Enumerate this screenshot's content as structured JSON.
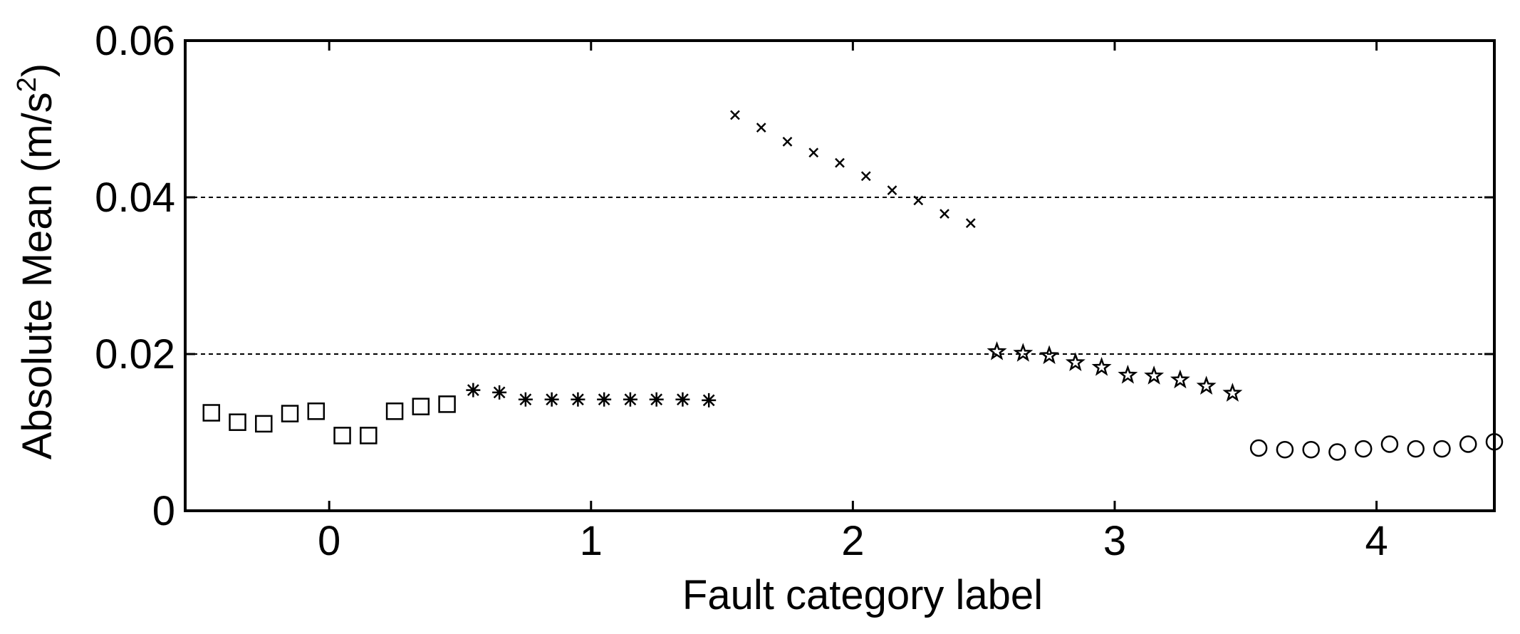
{
  "chart_data": {
    "type": "scatter",
    "title": "",
    "xlabel": "Fault category label",
    "ylabel_main": "Absolute Mean (m/s",
    "ylabel_sup": "2",
    "ylabel_tail": ")",
    "xlim": [
      -0.55,
      4.45
    ],
    "ylim": [
      0,
      0.06
    ],
    "xticks": [
      0,
      1,
      2,
      3,
      4
    ],
    "xtick_labels": [
      "0",
      "1",
      "2",
      "3",
      "4"
    ],
    "yticks": [
      0,
      0.02,
      0.04,
      0.06
    ],
    "ytick_labels": [
      "0",
      "0.02",
      "0.04",
      "0.06"
    ],
    "grid": {
      "y_dashed_at": [
        0.02,
        0.04
      ]
    },
    "series": [
      {
        "marker": "square",
        "x": [
          -0.45,
          -0.35,
          -0.25,
          -0.15,
          -0.05,
          0.05,
          0.15,
          0.25,
          0.35,
          0.45
        ],
        "y": [
          0.0125,
          0.0113,
          0.0111,
          0.0124,
          0.0127,
          0.0096,
          0.0096,
          0.0127,
          0.0133,
          0.0136
        ]
      },
      {
        "marker": "asterisk",
        "x": [
          0.55,
          0.65,
          0.75,
          0.85,
          0.95,
          1.05,
          1.15,
          1.25,
          1.35,
          1.45
        ],
        "y": [
          0.0154,
          0.0151,
          0.0142,
          0.0142,
          0.0142,
          0.0142,
          0.0142,
          0.0142,
          0.0142,
          0.0141
        ]
      },
      {
        "marker": "x",
        "x": [
          1.55,
          1.65,
          1.75,
          1.85,
          1.95,
          2.05,
          2.15,
          2.25,
          2.35,
          2.45
        ],
        "y": [
          0.0505,
          0.0489,
          0.0471,
          0.0457,
          0.0444,
          0.0427,
          0.0409,
          0.0396,
          0.0379,
          0.0367
        ]
      },
      {
        "marker": "star",
        "x": [
          2.55,
          2.65,
          2.75,
          2.85,
          2.95,
          3.05,
          3.15,
          3.25,
          3.35,
          3.45
        ],
        "y": [
          0.0203,
          0.0201,
          0.0198,
          0.0189,
          0.0183,
          0.0173,
          0.0172,
          0.0167,
          0.0159,
          0.015
        ]
      },
      {
        "marker": "circle",
        "x": [
          3.55,
          3.65,
          3.75,
          3.85,
          3.95,
          4.05,
          4.15,
          4.25,
          4.35,
          4.45
        ],
        "y": [
          0.008,
          0.0078,
          0.0078,
          0.0075,
          0.0079,
          0.0085,
          0.0079,
          0.0079,
          0.0085,
          0.0088
        ]
      }
    ]
  }
}
